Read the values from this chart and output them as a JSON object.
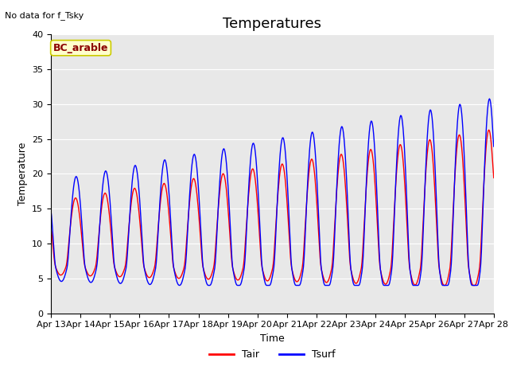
{
  "title": "Temperatures",
  "xlabel": "Time",
  "ylabel": "Temperature",
  "top_left_text": "No data for f_Tsky",
  "box_label": "BC_arable",
  "legend_labels": [
    "Tair",
    "Tsurf"
  ],
  "legend_colors": [
    "red",
    "blue"
  ],
  "ylim": [
    0,
    40
  ],
  "yticks": [
    0,
    5,
    10,
    15,
    20,
    25,
    30,
    35,
    40
  ],
  "xtick_labels": [
    "Apr 13",
    "Apr 14",
    "Apr 15",
    "Apr 16",
    "Apr 17",
    "Apr 18",
    "Apr 19",
    "Apr 20",
    "Apr 21",
    "Apr 22",
    "Apr 23",
    "Apr 24",
    "Apr 25",
    "Apr 26",
    "Apr 27",
    "Apr 28"
  ],
  "bg_color": "#e8e8e8",
  "box_bg": "#ffffcc",
  "box_edge": "#cccc00",
  "box_text_color": "#8b0000",
  "title_fontsize": 13,
  "label_fontsize": 9,
  "tick_fontsize": 8
}
